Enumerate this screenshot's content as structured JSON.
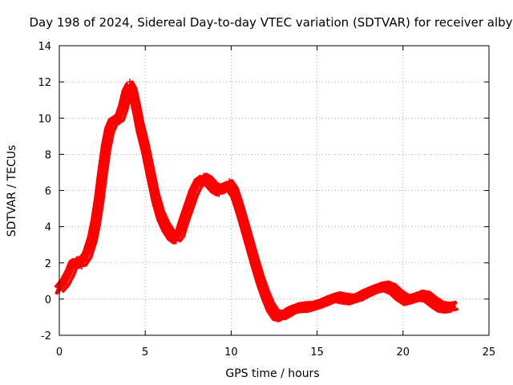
{
  "chart_data": {
    "type": "scatter",
    "title": "Day 198 of 2024, Sidereal Day-to-day VTEC variation (SDTVAR) for receiver alby",
    "xlabel": "GPS time / hours",
    "ylabel": "SDTVAR / TECUs",
    "xlim": [
      0,
      25
    ],
    "ylim": [
      -2,
      14
    ],
    "xticks": [
      0,
      5,
      10,
      15,
      20,
      25
    ],
    "yticks": [
      -2,
      0,
      2,
      4,
      6,
      8,
      10,
      12,
      14
    ],
    "grid": true,
    "marker": "+",
    "color": "#ff0000",
    "series": [
      {
        "name": "SDTVAR",
        "x": [
          0.0,
          0.3,
          0.6,
          0.8,
          1.0,
          1.3,
          1.6,
          1.9,
          2.1,
          2.3,
          2.5,
          2.7,
          2.9,
          3.1,
          3.3,
          3.5,
          3.7,
          3.9,
          4.1,
          4.3,
          4.5,
          4.7,
          5.0,
          5.3,
          5.6,
          5.9,
          6.2,
          6.5,
          6.8,
          7.0,
          7.2,
          7.5,
          7.8,
          8.1,
          8.4,
          8.7,
          9.0,
          9.3,
          9.6,
          9.9,
          10.2,
          10.5,
          10.8,
          11.1,
          11.4,
          11.7,
          12.0,
          12.3,
          12.6,
          12.9,
          13.2,
          13.5,
          13.8,
          14.2,
          14.6,
          15.0,
          15.4,
          15.8,
          16.2,
          16.6,
          17.0,
          17.4,
          17.8,
          18.2,
          18.6,
          19.0,
          19.4,
          19.8,
          20.2,
          20.6,
          21.0,
          21.4,
          21.8,
          22.2,
          22.6,
          22.9
        ],
        "y": [
          0.5,
          0.8,
          1.5,
          2.0,
          2.2,
          1.8,
          2.2,
          3.5,
          4.0,
          5.5,
          7.0,
          8.5,
          9.5,
          9.8,
          10.0,
          9.8,
          10.5,
          11.5,
          12.0,
          11.5,
          10.5,
          9.5,
          8.5,
          7.0,
          5.5,
          4.5,
          4.0,
          3.5,
          3.2,
          3.5,
          4.2,
          5.0,
          6.0,
          6.5,
          6.8,
          6.5,
          6.2,
          5.8,
          6.2,
          6.5,
          6.0,
          5.0,
          4.0,
          3.0,
          2.0,
          1.0,
          0.2,
          -0.5,
          -1.0,
          -1.0,
          -0.8,
          -0.6,
          -0.5,
          -0.4,
          -0.5,
          -0.3,
          -0.2,
          0.0,
          0.2,
          0.0,
          -0.1,
          0.1,
          0.3,
          0.5,
          0.6,
          0.8,
          0.6,
          0.2,
          -0.2,
          0.0,
          0.3,
          0.2,
          -0.2,
          -0.5,
          -0.5,
          -0.4
        ]
      }
    ]
  }
}
